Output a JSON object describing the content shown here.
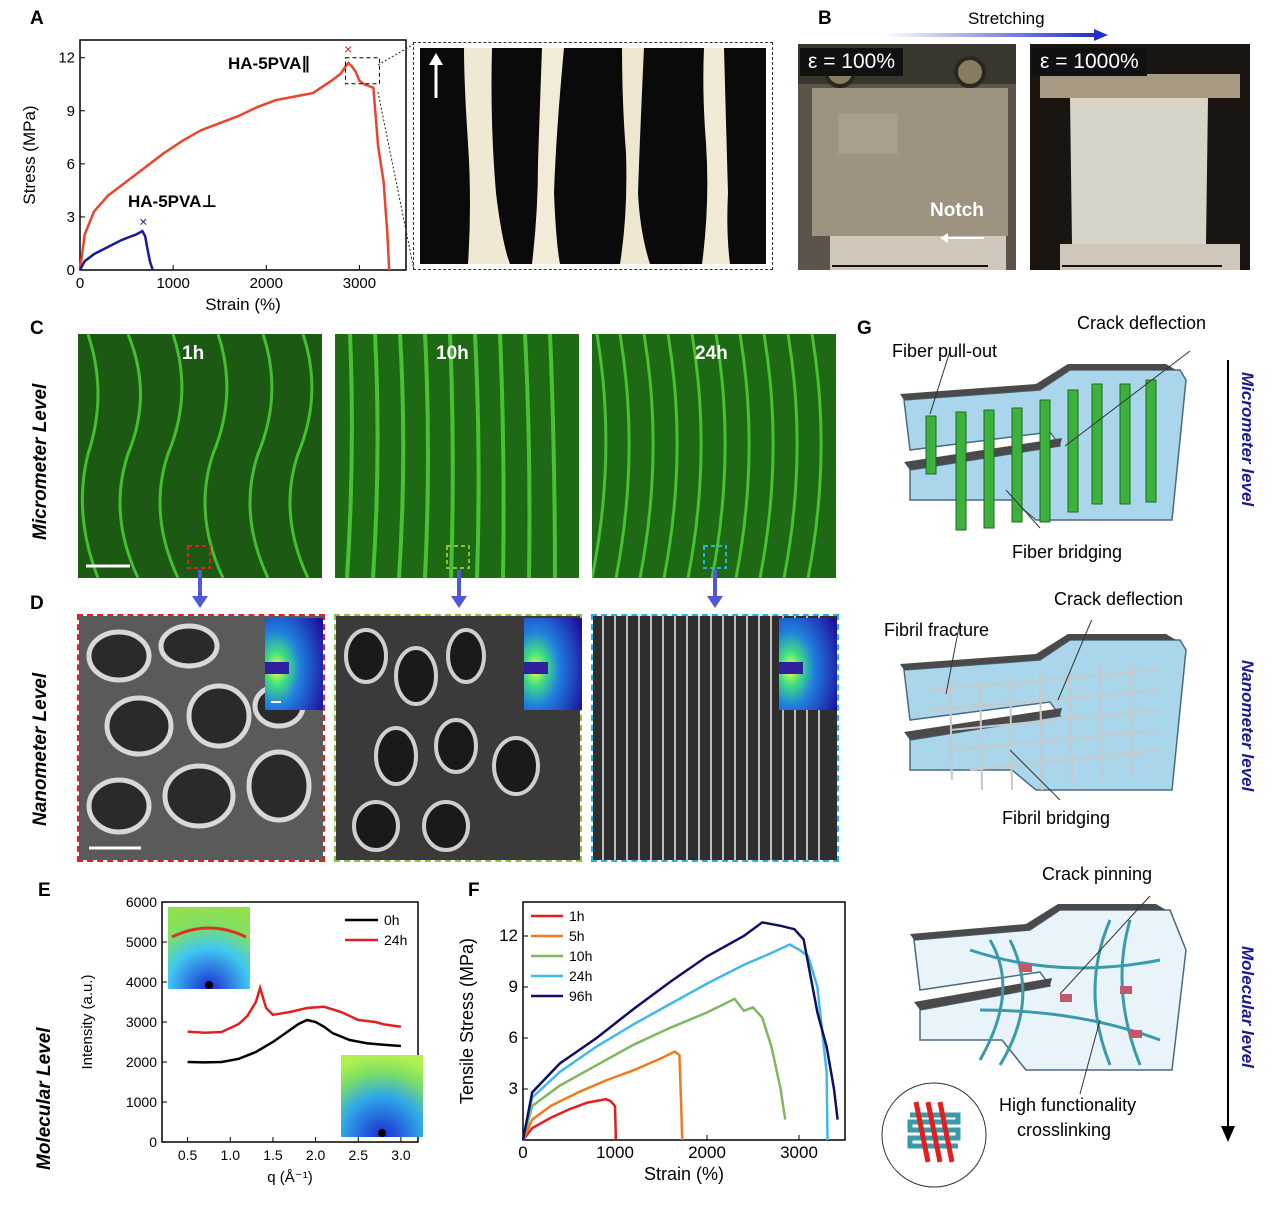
{
  "panels": {
    "A": "A",
    "B": "B",
    "C": "C",
    "D": "D",
    "E": "E",
    "F": "F",
    "G": "G"
  },
  "panel_a": {
    "label_parallel": "HA-5PVA∥",
    "label_perp": "HA-5PVA⊥"
  },
  "panel_b": {
    "title": "Stretching",
    "strain_left": "ε = 100%",
    "strain_right": "ε = 1000%",
    "notch": "Notch"
  },
  "panel_c": {
    "row_label": "Micrometer Level",
    "times": [
      "1h",
      "10h",
      "24h"
    ],
    "colors": {
      "box1": "#e02020",
      "box2": "#8fbf3f",
      "box3": "#2ab0e0"
    }
  },
  "panel_d": {
    "row_label": "Nanometer Level"
  },
  "panel_e": {
    "row_label": "Molecular Level"
  },
  "panel_g": {
    "level1_labels": {
      "pullout": "Fiber pull-out",
      "deflection": "Crack deflection",
      "bridging": "Fiber bridging"
    },
    "level2_labels": {
      "fracture": "Fibril fracture",
      "deflection": "Crack deflection",
      "bridging": "Fibril bridging"
    },
    "level3_labels": {
      "pinning": "Crack pinning",
      "crosslink_1": "High functionality",
      "crosslink_2": "crosslinking"
    },
    "side_levels": [
      "Micrometer level",
      "Nanometer level",
      "Molecular level"
    ]
  },
  "chart_data": [
    {
      "panel": "A",
      "type": "line",
      "xlabel": "Strain (%)",
      "ylabel": "Stress (MPa)",
      "xlim": [
        0,
        3500
      ],
      "ylim": [
        0,
        13
      ],
      "x_ticks": [
        0,
        1000,
        2000,
        3000
      ],
      "y_ticks": [
        0,
        3,
        6,
        9,
        12
      ],
      "series": [
        {
          "name": "HA-5PVA∥",
          "color": "#e8442e",
          "x": [
            0,
            50,
            150,
            300,
            500,
            700,
            900,
            1100,
            1300,
            1500,
            1700,
            1900,
            2100,
            2300,
            2500,
            2700,
            2800,
            2850,
            2880,
            2920,
            2960,
            3000,
            3050,
            3100,
            3150,
            3200,
            3260,
            3300,
            3320
          ],
          "y": [
            0,
            2.0,
            3.3,
            4.2,
            5.0,
            5.8,
            6.6,
            7.3,
            7.9,
            8.3,
            8.7,
            9.2,
            9.6,
            9.8,
            10.0,
            10.7,
            11.1,
            11.5,
            11.7,
            11.5,
            11.2,
            10.7,
            10.5,
            10.4,
            10.3,
            7.0,
            5.0,
            2.0,
            0
          ]
        },
        {
          "name": "HA-5PVA⊥",
          "color": "#1a1a9a",
          "x": [
            0,
            50,
            150,
            300,
            450,
            600,
            670,
            700,
            720,
            750,
            780
          ],
          "y": [
            0,
            0.5,
            0.9,
            1.3,
            1.7,
            2.0,
            2.2,
            1.9,
            1.3,
            0.5,
            0
          ]
        }
      ]
    },
    {
      "panel": "E",
      "type": "line",
      "xlabel": "q (Å⁻¹)",
      "ylabel": "Intensity (a.u.)",
      "xlim": [
        0.2,
        3.2
      ],
      "ylim": [
        0,
        6000
      ],
      "x_ticks": [
        "0.5",
        "1.0",
        "1.5",
        "2.0",
        "2.5",
        "3.0"
      ],
      "y_ticks": [
        0,
        1000,
        2000,
        3000,
        4000,
        5000,
        6000
      ],
      "series": [
        {
          "name": "0h",
          "color": "#000000",
          "x": [
            0.5,
            0.7,
            0.9,
            1.1,
            1.3,
            1.5,
            1.7,
            1.8,
            1.9,
            2.0,
            2.1,
            2.2,
            2.4,
            2.6,
            2.8,
            3.0
          ],
          "y": [
            2000,
            1990,
            2000,
            2080,
            2250,
            2500,
            2800,
            2950,
            3050,
            3000,
            2880,
            2720,
            2550,
            2470,
            2430,
            2400
          ]
        },
        {
          "name": "24h",
          "color": "#e02020",
          "x": [
            0.5,
            0.7,
            0.9,
            1.1,
            1.2,
            1.3,
            1.35,
            1.42,
            1.5,
            1.7,
            1.9,
            2.1,
            2.3,
            2.5,
            2.7,
            2.8,
            3.0
          ],
          "y": [
            2760,
            2730,
            2750,
            2950,
            3150,
            3500,
            3850,
            3350,
            3180,
            3250,
            3350,
            3380,
            3250,
            3050,
            3000,
            2940,
            2880
          ]
        }
      ],
      "legend": "top-right"
    },
    {
      "panel": "F",
      "type": "line",
      "xlabel": "Strain (%)",
      "ylabel": "Tensile Stress (MPa)",
      "xlim": [
        0,
        3500
      ],
      "ylim": [
        0,
        14
      ],
      "x_ticks": [
        0,
        1000,
        2000,
        3000
      ],
      "y_ticks": [
        3,
        6,
        9,
        12
      ],
      "series": [
        {
          "name": "1h",
          "color": "#e02020",
          "x": [
            0,
            100,
            300,
            500,
            700,
            900,
            950,
            1000,
            1010
          ],
          "y": [
            0,
            0.7,
            1.3,
            1.8,
            2.2,
            2.4,
            2.3,
            2.0,
            0
          ]
        },
        {
          "name": "5h",
          "color": "#f07a20",
          "x": [
            0,
            100,
            300,
            600,
            900,
            1200,
            1500,
            1650,
            1700,
            1720,
            1730
          ],
          "y": [
            0,
            1.2,
            2.0,
            2.8,
            3.5,
            4.1,
            4.8,
            5.2,
            5.0,
            2.0,
            0
          ]
        },
        {
          "name": "10h",
          "color": "#80b860",
          "x": [
            0,
            100,
            400,
            800,
            1200,
            1600,
            2000,
            2300,
            2400,
            2500,
            2600,
            2700,
            2800,
            2850
          ],
          "y": [
            0,
            2.0,
            3.2,
            4.4,
            5.6,
            6.6,
            7.5,
            8.3,
            7.6,
            7.8,
            7.2,
            5.5,
            3.0,
            1.2
          ]
        },
        {
          "name": "24h",
          "color": "#40b8e8",
          "x": [
            0,
            100,
            400,
            800,
            1200,
            1600,
            2000,
            2400,
            2700,
            2900,
            3000,
            3100,
            3200,
            3300,
            3310
          ],
          "y": [
            0,
            2.5,
            4.0,
            5.5,
            6.8,
            8.0,
            9.2,
            10.3,
            11.0,
            11.5,
            11.2,
            10.8,
            9.0,
            4.0,
            0
          ]
        },
        {
          "name": "96h",
          "color": "#101060",
          "x": [
            0,
            100,
            400,
            800,
            1200,
            1600,
            2000,
            2400,
            2600,
            2800,
            2950,
            3050,
            3200,
            3300,
            3380,
            3420
          ],
          "y": [
            0,
            2.8,
            4.5,
            6.0,
            7.7,
            9.3,
            10.8,
            12.0,
            12.8,
            12.6,
            12.4,
            11.8,
            7.5,
            5.5,
            3.0,
            1.2
          ]
        }
      ],
      "legend": "top-left"
    }
  ]
}
